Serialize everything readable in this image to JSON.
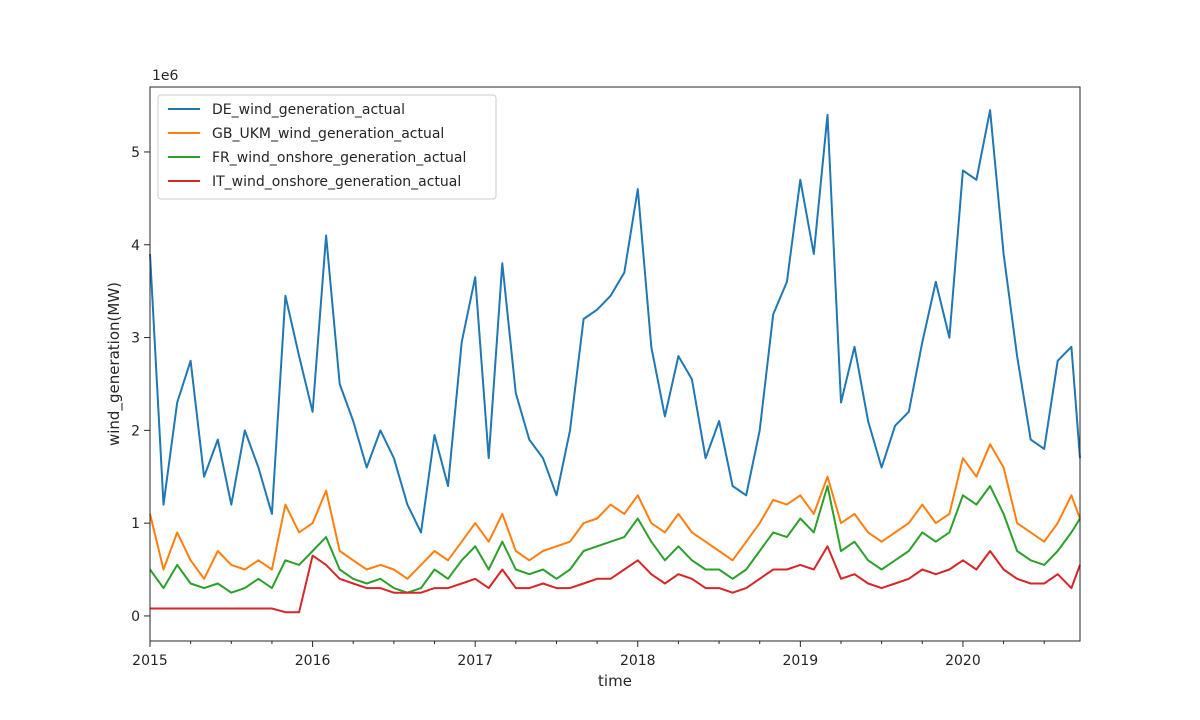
{
  "chart_data": {
    "type": "line",
    "title": "",
    "xlabel": "time",
    "ylabel": "wind_generation(MW)",
    "y_offset_label": "1e6",
    "y_scale_factor": 1000000,
    "xlim": [
      2015.0,
      2020.72
    ],
    "ylim": [
      -0.27,
      5.7
    ],
    "x_ticks": [
      2015,
      2016,
      2017,
      2018,
      2019,
      2020
    ],
    "y_ticks": [
      0,
      1,
      2,
      3,
      4,
      5
    ],
    "grid": false,
    "legend_position": "upper-left",
    "colors": {
      "DE": "#1f77b4",
      "GB": "#ff7f0e",
      "FR": "#2ca02c",
      "IT": "#d62728"
    },
    "x": [
      2015.0,
      2015.083,
      2015.167,
      2015.25,
      2015.333,
      2015.417,
      2015.5,
      2015.583,
      2015.667,
      2015.75,
      2015.833,
      2015.917,
      2016.0,
      2016.083,
      2016.167,
      2016.25,
      2016.333,
      2016.417,
      2016.5,
      2016.583,
      2016.667,
      2016.75,
      2016.833,
      2016.917,
      2017.0,
      2017.083,
      2017.167,
      2017.25,
      2017.333,
      2017.417,
      2017.5,
      2017.583,
      2017.667,
      2017.75,
      2017.833,
      2017.917,
      2018.0,
      2018.083,
      2018.167,
      2018.25,
      2018.333,
      2018.417,
      2018.5,
      2018.583,
      2018.667,
      2018.75,
      2018.833,
      2018.917,
      2019.0,
      2019.083,
      2019.167,
      2019.25,
      2019.333,
      2019.417,
      2019.5,
      2019.583,
      2019.667,
      2019.75,
      2019.833,
      2019.917,
      2020.0,
      2020.083,
      2020.167,
      2020.25,
      2020.333,
      2020.417,
      2020.5,
      2020.583,
      2020.667,
      2020.72
    ],
    "series": [
      {
        "name": "DE_wind_generation_actual",
        "values": [
          3.9,
          1.2,
          2.3,
          2.75,
          1.5,
          1.9,
          1.2,
          2.0,
          1.6,
          1.1,
          3.45,
          2.8,
          2.2,
          4.1,
          2.5,
          2.1,
          1.6,
          2.0,
          1.7,
          1.2,
          0.9,
          1.95,
          1.4,
          2.95,
          3.65,
          1.7,
          3.8,
          2.4,
          1.9,
          1.7,
          1.3,
          2.0,
          3.2,
          3.3,
          3.45,
          3.7,
          4.6,
          2.9,
          2.15,
          2.8,
          2.55,
          1.7,
          2.1,
          1.4,
          1.3,
          2.0,
          3.25,
          3.6,
          4.7,
          3.9,
          5.4,
          2.3,
          2.9,
          2.1,
          1.6,
          2.05,
          2.2,
          2.95,
          3.6,
          3.0,
          4.8,
          4.7,
          5.45,
          3.9,
          2.8,
          1.9,
          1.8,
          2.75,
          2.9,
          1.7
        ]
      },
      {
        "name": "GB_UKM_wind_generation_actual",
        "values": [
          1.1,
          0.5,
          0.9,
          0.6,
          0.4,
          0.7,
          0.55,
          0.5,
          0.6,
          0.5,
          1.2,
          0.9,
          1.0,
          1.35,
          0.7,
          0.6,
          0.5,
          0.55,
          0.5,
          0.4,
          0.55,
          0.7,
          0.6,
          0.8,
          1.0,
          0.8,
          1.1,
          0.7,
          0.6,
          0.7,
          0.75,
          0.8,
          1.0,
          1.05,
          1.2,
          1.1,
          1.3,
          1.0,
          0.9,
          1.1,
          0.9,
          0.8,
          0.7,
          0.6,
          0.8,
          1.0,
          1.25,
          1.2,
          1.3,
          1.1,
          1.5,
          1.0,
          1.1,
          0.9,
          0.8,
          0.9,
          1.0,
          1.2,
          1.0,
          1.1,
          1.7,
          1.5,
          1.85,
          1.6,
          1.0,
          0.9,
          0.8,
          1.0,
          1.3,
          1.05
        ]
      },
      {
        "name": "FR_wind_onshore_generation_actual",
        "values": [
          0.5,
          0.3,
          0.55,
          0.35,
          0.3,
          0.35,
          0.25,
          0.3,
          0.4,
          0.3,
          0.6,
          0.55,
          0.7,
          0.85,
          0.5,
          0.4,
          0.35,
          0.4,
          0.3,
          0.25,
          0.3,
          0.5,
          0.4,
          0.6,
          0.75,
          0.5,
          0.8,
          0.5,
          0.45,
          0.5,
          0.4,
          0.5,
          0.7,
          0.75,
          0.8,
          0.85,
          1.05,
          0.8,
          0.6,
          0.75,
          0.6,
          0.5,
          0.5,
          0.4,
          0.5,
          0.7,
          0.9,
          0.85,
          1.05,
          0.9,
          1.4,
          0.7,
          0.8,
          0.6,
          0.5,
          0.6,
          0.7,
          0.9,
          0.8,
          0.9,
          1.3,
          1.2,
          1.4,
          1.1,
          0.7,
          0.6,
          0.55,
          0.7,
          0.9,
          1.05
        ]
      },
      {
        "name": "IT_wind_onshore_generation_actual",
        "values": [
          0.08,
          0.08,
          0.08,
          0.08,
          0.08,
          0.08,
          0.08,
          0.08,
          0.08,
          0.08,
          0.04,
          0.04,
          0.65,
          0.55,
          0.4,
          0.35,
          0.3,
          0.3,
          0.25,
          0.25,
          0.25,
          0.3,
          0.3,
          0.35,
          0.4,
          0.3,
          0.5,
          0.3,
          0.3,
          0.35,
          0.3,
          0.3,
          0.35,
          0.4,
          0.4,
          0.5,
          0.6,
          0.45,
          0.35,
          0.45,
          0.4,
          0.3,
          0.3,
          0.25,
          0.3,
          0.4,
          0.5,
          0.5,
          0.55,
          0.5,
          0.75,
          0.4,
          0.45,
          0.35,
          0.3,
          0.35,
          0.4,
          0.5,
          0.45,
          0.5,
          0.6,
          0.5,
          0.7,
          0.5,
          0.4,
          0.35,
          0.35,
          0.45,
          0.3,
          0.55
        ]
      }
    ]
  }
}
